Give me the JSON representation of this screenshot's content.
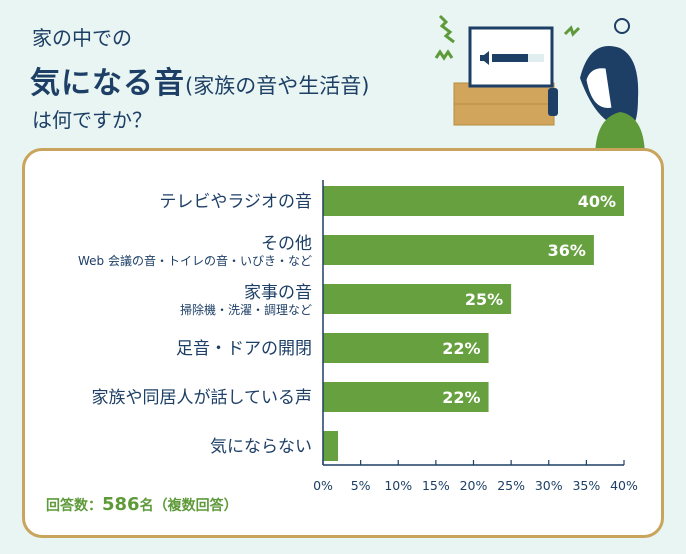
{
  "title": {
    "line1": "家の中での",
    "line2_main": "気になる音",
    "line2_sub": "(家族の音や生活音)",
    "line3": "は何ですか？"
  },
  "footer": {
    "prefix": "回答数：",
    "count": "586",
    "suffix": "名（複数回答）"
  },
  "colors": {
    "bar": "#67a03f",
    "text": "#1d3f66",
    "border": "#c9a45c",
    "bg": "#e9f5f2"
  },
  "chart_data": {
    "type": "bar",
    "orientation": "horizontal",
    "categories": [
      "テレビやラジオの音",
      "その他",
      "家事の音",
      "足音・ドアの開閉",
      "家族や同居人が話している声",
      "気にならない"
    ],
    "subcategories": [
      "",
      "Web 会議の音・トイレの音・いびき・など",
      "掃除機・洗濯・調理など",
      "",
      "",
      ""
    ],
    "values": [
      40,
      36,
      25,
      22,
      22,
      2
    ],
    "value_labels": [
      "40%",
      "36%",
      "25%",
      "22%",
      "22%",
      "2%"
    ],
    "xlim": [
      0,
      40
    ],
    "ticks": [
      0,
      5,
      10,
      15,
      20,
      25,
      30,
      35,
      40
    ],
    "tick_labels": [
      "0%",
      "5%",
      "10%",
      "15%",
      "20%",
      "25%",
      "30%",
      "35%",
      "40%"
    ],
    "xlabel": "",
    "ylabel": "",
    "grid": false
  }
}
